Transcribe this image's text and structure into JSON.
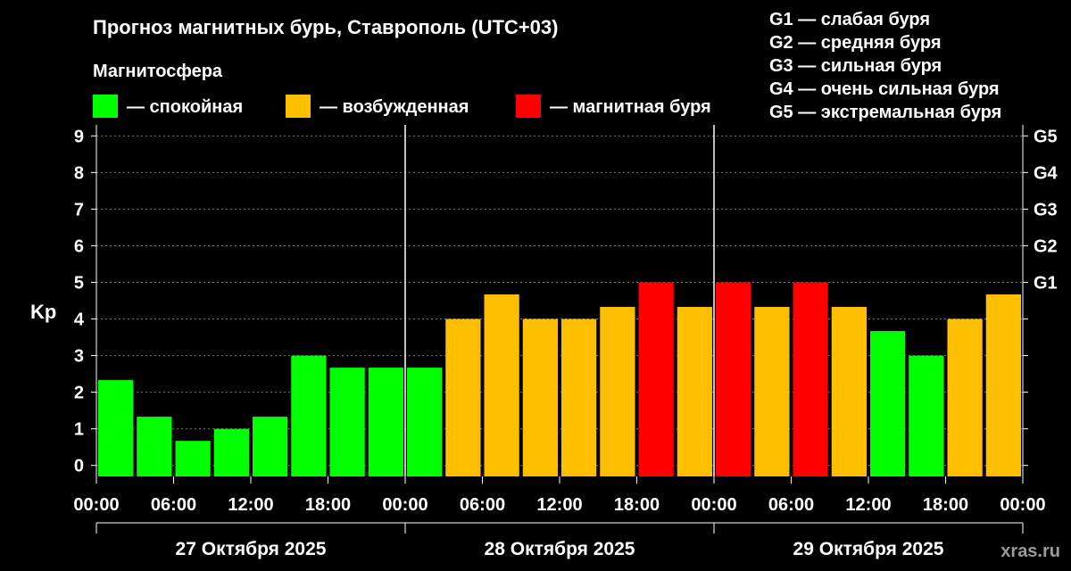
{
  "colors": {
    "background": "#000000",
    "quiet": "#00ff00",
    "active": "#ffbf00",
    "storm": "#ff0000",
    "foreground": "#ffffff"
  },
  "legend": {
    "heading": "Магнитосфера",
    "items": [
      {
        "key": "quiet",
        "label": "— спокойная"
      },
      {
        "key": "active",
        "label": "— возбужденная"
      },
      {
        "key": "storm",
        "label": "— магнитная буря"
      }
    ]
  },
  "g_scale": [
    "G1 — слабая буря",
    "G2 — средняя буря",
    "G3 — сильная буря",
    "G4 — очень сильная буря",
    "G5 — экстремальная буря"
  ],
  "watermark": "xras.ru",
  "chart_data": {
    "type": "bar",
    "title": "Прогноз магнитных бурь, Ставрополь (UTC+03)",
    "ylabel": "Kp",
    "ylim": [
      -0.3,
      9.3
    ],
    "grid": true,
    "yticks": [
      "0",
      "1",
      "2",
      "3",
      "4",
      "5",
      "6",
      "7",
      "8",
      "9"
    ],
    "right_ticks": [
      {
        "value": 5,
        "label": "G1"
      },
      {
        "value": 6,
        "label": "G2"
      },
      {
        "value": 7,
        "label": "G3"
      },
      {
        "value": 8,
        "label": "G4"
      },
      {
        "value": 9,
        "label": "G5"
      }
    ],
    "x_tick_labels": [
      "00:00",
      "06:00",
      "12:00",
      "18:00",
      "00:00",
      "06:00",
      "12:00",
      "18:00",
      "00:00",
      "06:00",
      "12:00",
      "18:00",
      "00:00"
    ],
    "days": [
      "27 Октября 2025",
      "28 Октября 2025",
      "29 Октября 2025"
    ],
    "bars": [
      {
        "time": "27 Октября 2025 00:00–03:00",
        "kp": 2.33,
        "level": "quiet"
      },
      {
        "time": "27 Октября 2025 03:00–06:00",
        "kp": 1.33,
        "level": "quiet"
      },
      {
        "time": "27 Октября 2025 06:00–09:00",
        "kp": 0.67,
        "level": "quiet"
      },
      {
        "time": "27 Октября 2025 09:00–12:00",
        "kp": 1.0,
        "level": "quiet"
      },
      {
        "time": "27 Октября 2025 12:00–15:00",
        "kp": 1.33,
        "level": "quiet"
      },
      {
        "time": "27 Октября 2025 15:00–18:00",
        "kp": 3.0,
        "level": "quiet"
      },
      {
        "time": "27 Октября 2025 18:00–21:00",
        "kp": 2.67,
        "level": "quiet"
      },
      {
        "time": "27 Октября 2025 21:00–24:00",
        "kp": 2.67,
        "level": "quiet"
      },
      {
        "time": "28 Октября 2025 00:00–03:00",
        "kp": 2.67,
        "level": "quiet"
      },
      {
        "time": "28 Октября 2025 03:00–06:00",
        "kp": 4.0,
        "level": "active"
      },
      {
        "time": "28 Октября 2025 06:00–09:00",
        "kp": 4.67,
        "level": "active"
      },
      {
        "time": "28 Октября 2025 09:00–12:00",
        "kp": 4.0,
        "level": "active"
      },
      {
        "time": "28 Октября 2025 12:00–15:00",
        "kp": 4.0,
        "level": "active"
      },
      {
        "time": "28 Октября 2025 15:00–18:00",
        "kp": 4.33,
        "level": "active"
      },
      {
        "time": "28 Октября 2025 18:00–21:00",
        "kp": 5.0,
        "level": "storm"
      },
      {
        "time": "28 Октября 2025 21:00–24:00",
        "kp": 4.33,
        "level": "active"
      },
      {
        "time": "29 Октября 2025 00:00–03:00",
        "kp": 5.0,
        "level": "storm"
      },
      {
        "time": "29 Октября 2025 03:00–06:00",
        "kp": 4.33,
        "level": "active"
      },
      {
        "time": "29 Октября 2025 06:00–09:00",
        "kp": 5.0,
        "level": "storm"
      },
      {
        "time": "29 Октября 2025 09:00–12:00",
        "kp": 4.33,
        "level": "active"
      },
      {
        "time": "29 Октября 2025 12:00–15:00",
        "kp": 3.67,
        "level": "quiet"
      },
      {
        "time": "29 Октября 2025 15:00–18:00",
        "kp": 3.0,
        "level": "quiet"
      },
      {
        "time": "29 Октября 2025 18:00–21:00",
        "kp": 4.0,
        "level": "active"
      },
      {
        "time": "29 Октября 2025 21:00–24:00",
        "kp": 4.67,
        "level": "active"
      }
    ]
  }
}
